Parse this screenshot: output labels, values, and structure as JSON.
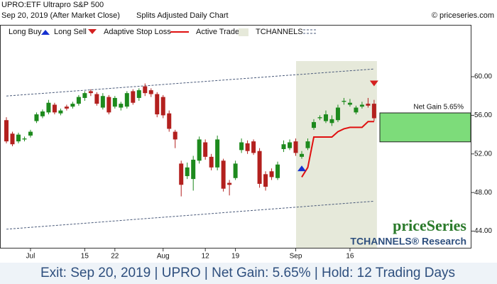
{
  "chart_data": {
    "type": "candlestick",
    "symbol": "UPRO:ETF Ultrapro S&P 500",
    "date": "Sep 20, 2019 (After Market Close)",
    "subtitle": "Splits Adjusted Daily Chart",
    "copyright": "© priceseries.com",
    "legend": {
      "long_buy": "Long Buy",
      "long_sell": "Long Sell",
      "stop": "Adaptive Stop Loss",
      "active": "Active Trade",
      "channels": "TCHANNELS"
    },
    "brand": "priceSeries",
    "brand_sub": "TCHANNELS® Research",
    "footer": "Exit: Sep 20, 2019 | UPRO | Net Gain: 5.65% | Hold: 12 Trading Days",
    "colors": {
      "up": "#1d8a1d",
      "down": "#b3201e",
      "buy": "#1530d0",
      "sell": "#d42020",
      "stop": "#e01010",
      "active": "#e6e9da",
      "channel": "#4a5a7a",
      "gain": "#7ddc7a"
    },
    "categories": [
      null,
      null,
      null,
      null,
      "Jul",
      null,
      null,
      null,
      null,
      null,
      null,
      null,
      null,
      "15",
      null,
      null,
      null,
      null,
      "22",
      null,
      null,
      null,
      null,
      null,
      null,
      null,
      "Aug",
      null,
      null,
      null,
      null,
      null,
      null,
      "12",
      null,
      null,
      null,
      null,
      "19",
      null,
      null,
      null,
      null,
      null,
      null,
      null,
      null,
      null,
      "Sep",
      null,
      null,
      null,
      null,
      null,
      null,
      null,
      null,
      "16",
      null,
      null,
      null,
      null
    ],
    "open": [
      55.5,
      54.1,
      53.3,
      53.5,
      53.9,
      55.4,
      55.9,
      56.3,
      57.1,
      56.2,
      56.9,
      56.9,
      57.2,
      57.8,
      58.5,
      58.2,
      56.8,
      57.9,
      56.9,
      56.8,
      56.9,
      58.5,
      57.8,
      59.0,
      58.6,
      58.2,
      57.9,
      56.2,
      54.3,
      51.0,
      49.7,
      49.4,
      51.3,
      53.2,
      51.7,
      50.6,
      51.3,
      49.0,
      49.5,
      52.4,
      53.1,
      53.3,
      52.3,
      49.9,
      50.2,
      49.5,
      52.5,
      52.6,
      53.3,
      51.7,
      52.6,
      54.7,
      55.7,
      55.4,
      55.2,
      55.5,
      57.4,
      57.1,
      56.3,
      56.9,
      57.2,
      57.2
    ],
    "high": [
      55.8,
      54.3,
      54.2,
      53.8,
      54.5,
      56.3,
      56.6,
      57.6,
      57.3,
      56.7,
      57.1,
      57.4,
      58.1,
      58.5,
      58.7,
      58.4,
      58.3,
      58.1,
      58.0,
      57.4,
      58.5,
      58.7,
      58.8,
      59.3,
      58.8,
      58.4,
      58.1,
      56.5,
      54.5,
      51.3,
      51.1,
      51.8,
      53.8,
      53.5,
      52.0,
      53.9,
      51.5,
      49.3,
      51.3,
      53.6,
      53.4,
      53.5,
      52.6,
      50.2,
      50.5,
      51.2,
      53.4,
      53.5,
      53.6,
      52.3,
      53.6,
      55.6,
      56.0,
      56.5,
      56.0,
      57.1,
      57.8,
      57.7,
      57.0,
      57.4,
      57.8,
      57.6
    ],
    "low": [
      53.1,
      52.8,
      53.1,
      53.3,
      53.7,
      55.2,
      55.7,
      56.1,
      56.1,
      56.0,
      56.5,
      56.7,
      57.0,
      57.5,
      58.0,
      57.0,
      56.6,
      56.1,
      56.7,
      56.5,
      56.7,
      57.1,
      57.5,
      58.0,
      57.9,
      55.8,
      55.7,
      54.3,
      52.6,
      47.6,
      49.4,
      48.2,
      51.0,
      51.4,
      50.3,
      50.3,
      48.1,
      47.7,
      49.3,
      52.1,
      52.0,
      51.9,
      48.5,
      48.2,
      49.3,
      49.3,
      52.2,
      52.4,
      51.8,
      51.5,
      52.4,
      54.5,
      55.5,
      55.2,
      54.9,
      55.3,
      57.1,
      56.9,
      56.1,
      56.7,
      56.8,
      55.4
    ],
    "close": [
      53.3,
      53.0,
      54.0,
      53.6,
      54.3,
      56.1,
      56.4,
      57.3,
      56.3,
      56.5,
      56.7,
      57.2,
      57.9,
      58.3,
      58.3,
      57.2,
      58.0,
      56.3,
      57.8,
      57.2,
      58.3,
      57.3,
      58.6,
      58.3,
      58.2,
      56.1,
      56.0,
      54.6,
      53.5,
      48.8,
      50.6,
      51.4,
      53.5,
      51.7,
      50.6,
      53.5,
      48.4,
      48.8,
      51.0,
      53.2,
      52.3,
      52.1,
      48.9,
      48.6,
      49.6,
      50.9,
      53.0,
      53.2,
      52.1,
      52.0,
      53.3,
      55.3,
      55.8,
      56.1,
      55.6,
      56.8,
      57.5,
      57.3,
      56.8,
      57.1,
      57.0,
      55.7
    ],
    "stop": [
      null,
      null,
      null,
      null,
      null,
      null,
      null,
      null,
      null,
      null,
      null,
      null,
      null,
      null,
      null,
      null,
      null,
      null,
      null,
      null,
      null,
      null,
      null,
      null,
      null,
      null,
      null,
      null,
      null,
      null,
      null,
      null,
      null,
      null,
      null,
      null,
      null,
      null,
      null,
      null,
      null,
      null,
      null,
      null,
      null,
      null,
      null,
      null,
      null,
      49.6,
      50.6,
      53.75,
      53.75,
      53.75,
      53.75,
      54.3,
      54.6,
      54.75,
      54.75,
      54.75,
      55.35,
      55.35
    ],
    "long_buy": [
      null,
      null,
      null,
      null,
      null,
      null,
      null,
      null,
      null,
      null,
      null,
      null,
      null,
      null,
      null,
      null,
      null,
      null,
      null,
      null,
      null,
      null,
      null,
      null,
      null,
      null,
      null,
      null,
      null,
      null,
      null,
      null,
      null,
      null,
      null,
      null,
      null,
      null,
      null,
      null,
      null,
      null,
      null,
      null,
      null,
      null,
      null,
      null,
      null,
      50.5,
      null,
      null,
      null,
      null,
      null,
      null,
      null,
      null,
      null,
      null,
      null,
      null
    ],
    "long_sell": [
      null,
      null,
      null,
      null,
      null,
      null,
      null,
      null,
      null,
      null,
      null,
      null,
      null,
      null,
      null,
      null,
      null,
      null,
      null,
      null,
      null,
      null,
      null,
      null,
      null,
      null,
      null,
      null,
      null,
      null,
      null,
      null,
      null,
      null,
      null,
      null,
      null,
      null,
      null,
      null,
      null,
      null,
      null,
      null,
      null,
      null,
      null,
      null,
      null,
      null,
      null,
      null,
      null,
      null,
      null,
      null,
      null,
      null,
      null,
      null,
      null,
      59.3
    ],
    "channel_upper": [
      58.0,
      60.8
    ],
    "channel_lower": [
      44.2,
      47.1
    ],
    "net_gain": {
      "label": "Net Gain 5.65%",
      "from": 53.25,
      "to": 56.25
    },
    "ylim": [
      42.2,
      65.3
    ],
    "yticks": [
      {
        "value": 44,
        "label": "44.00"
      },
      {
        "value": 48,
        "label": "48.00"
      },
      {
        "value": 52,
        "label": "52.00"
      },
      {
        "value": 56,
        "label": "56.00"
      },
      {
        "value": 60,
        "label": "60.00"
      }
    ]
  }
}
